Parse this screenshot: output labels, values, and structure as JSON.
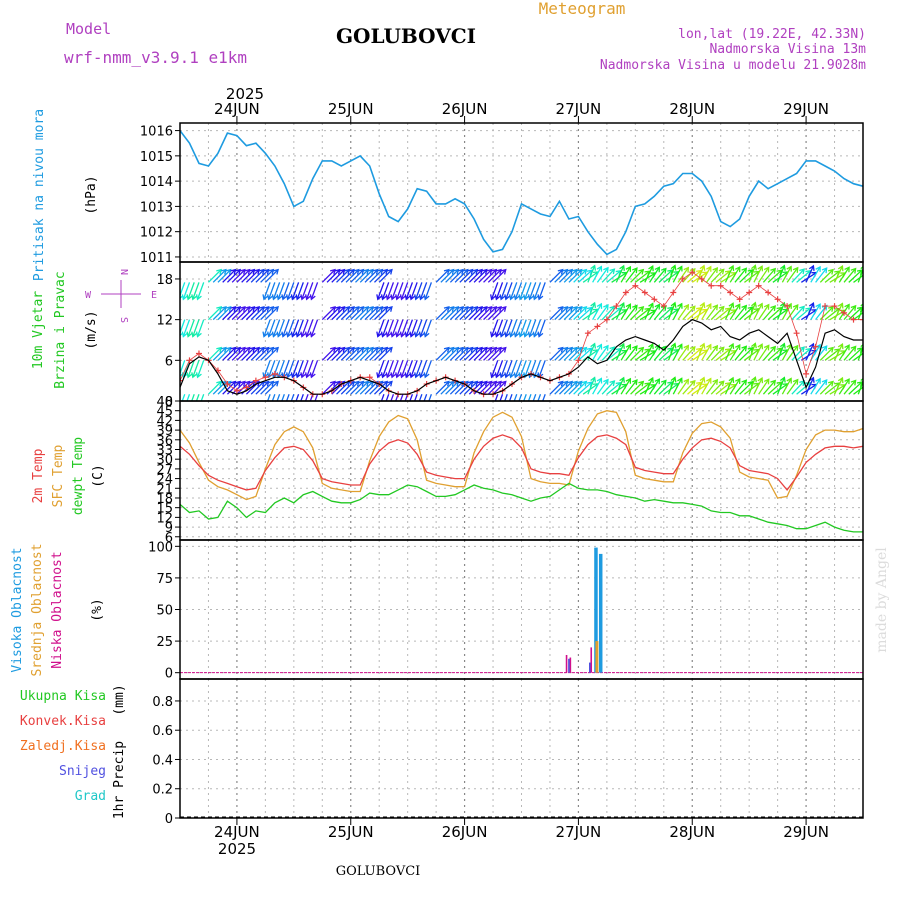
{
  "header": {
    "model_label": "Model",
    "model_name": "wrf-nmm_v3.9.1 e1km",
    "station": "GOLUBOVCI",
    "product": "Meteogram",
    "lonlat": "lon,lat (19.22E, 42.33N)",
    "altitude": "Nadmorska Visina 13m",
    "model_altitude": "Nadmorska Visina u modelu 21.9028m",
    "footer_station": "GOLUBOVCI",
    "credit": "made by Angel"
  },
  "colors": {
    "pressure": "#1e9be0",
    "temp2m": "#e84040",
    "sfc_temp": "#e0a030",
    "dewpoint": "#22c822",
    "high_cloud": "#1e9be0",
    "mid_cloud": "#e0a030",
    "low_cloud": "#d0108c",
    "total_precip": "#22c822",
    "conv_precip": "#e84040",
    "frz_precip": "#f07020",
    "snow": "#5050e0",
    "hail": "#20c8c8",
    "wind_label": "#22c822",
    "compass": "#b040c0",
    "wind_speed_line": "#000000",
    "gust": "#e84040"
  },
  "chart_data": [
    {
      "type": "line",
      "panel": "pressure",
      "ylabel_main": "Pritisak na nivou mora",
      "ylabel_unit": "(hPa)",
      "yticks": [
        "1011",
        "1012",
        "1013",
        "1014",
        "1015",
        "1016"
      ],
      "ylim": [
        1010.8,
        1016.3
      ],
      "x": [
        0,
        2,
        4,
        6,
        8,
        10,
        12,
        14,
        16,
        18,
        20,
        22,
        24,
        26,
        28,
        30,
        32,
        34,
        36,
        38,
        40,
        42,
        44,
        46,
        48,
        50,
        52,
        54,
        56,
        58,
        60,
        62,
        64,
        66,
        68,
        70,
        72,
        74,
        76,
        78,
        80,
        82,
        84,
        86,
        88,
        90,
        92,
        94,
        96,
        98,
        100,
        102,
        104,
        106,
        108,
        110,
        112,
        114,
        116,
        118,
        120,
        122,
        124,
        126,
        128,
        130,
        132,
        134,
        136,
        138,
        140,
        142,
        144
      ],
      "series": [
        {
          "values": [
            1016.0,
            1015.5,
            1014.7,
            1014.6,
            1015.1,
            1015.9,
            1015.8,
            1015.4,
            1015.5,
            1015.1,
            1014.6,
            1013.9,
            1013.0,
            1013.2,
            1014.1,
            1014.8,
            1014.8,
            1014.6,
            1014.8,
            1015.0,
            1014.6,
            1013.5,
            1012.6,
            1012.4,
            1012.9,
            1013.7,
            1013.6,
            1013.1,
            1013.1,
            1013.3,
            1013.1,
            1012.5,
            1011.7,
            1011.2,
            1011.3,
            1012.0,
            1013.1,
            1012.9,
            1012.7,
            1012.6,
            1013.2,
            1012.5,
            1012.6,
            1012.0,
            1011.5,
            1011.1,
            1011.3,
            1012.0,
            1013.0,
            1013.1,
            1013.4,
            1013.8,
            1013.9,
            1014.3,
            1014.3,
            1014.0,
            1013.4,
            1012.4,
            1012.2,
            1012.5,
            1013.4,
            1014.0,
            1013.7,
            1013.9,
            1014.1,
            1014.3,
            1014.8,
            1014.8,
            1014.6,
            1014.4,
            1014.1,
            1013.9,
            1013.8
          ]
        }
      ]
    },
    {
      "type": "line",
      "panel": "wind",
      "ylabel_main": "10m Vjetar",
      "ylabel_sub": "Brzina i Pravac",
      "ylabel_unit": "(m/s)",
      "compass": [
        "N",
        "E",
        "S",
        "W"
      ],
      "yticks": [
        "0",
        "6",
        "12",
        "18"
      ],
      "ylim": [
        0,
        20.5
      ],
      "series": [
        {
          "name": "speed",
          "x": [
            0,
            2,
            4,
            6,
            8,
            10,
            12,
            14,
            16,
            18,
            20,
            22,
            24,
            26,
            28,
            30,
            32,
            34,
            36,
            38,
            40,
            42,
            44,
            46,
            48,
            50,
            52,
            54,
            56,
            58,
            60,
            62,
            64,
            66,
            68,
            70,
            72,
            74,
            76,
            78,
            80,
            82,
            84,
            86,
            88,
            90,
            92,
            94,
            96,
            98,
            100,
            102,
            104,
            106,
            108,
            110,
            112,
            114,
            116,
            118,
            120,
            122,
            124,
            126,
            128,
            130,
            132,
            134,
            136,
            138,
            140,
            142,
            144
          ],
          "values": [
            2.0,
            5.5,
            6.5,
            6.0,
            4.0,
            1.5,
            1.0,
            1.5,
            2.5,
            3.0,
            3.5,
            3.5,
            3.0,
            2.0,
            1.0,
            1.0,
            1.5,
            2.5,
            3.0,
            3.5,
            3.0,
            2.5,
            1.5,
            1.0,
            1.0,
            1.5,
            2.5,
            3.0,
            3.5,
            3.0,
            2.5,
            1.5,
            1.0,
            1.0,
            1.5,
            2.5,
            3.5,
            4.0,
            3.5,
            3.0,
            3.5,
            4.0,
            5.0,
            6.5,
            5.5,
            6.0,
            8.0,
            9.0,
            9.5,
            9.0,
            8.5,
            7.5,
            9.0,
            11.0,
            12.0,
            11.5,
            10.5,
            11.0,
            9.5,
            9.0,
            10.0,
            10.5,
            9.5,
            8.5,
            10.0,
            6.0,
            2.0,
            5.0,
            10.0,
            10.5,
            9.5,
            9.0,
            9.0
          ]
        },
        {
          "name": "gust",
          "x": [
            0,
            2,
            4,
            6,
            8,
            10,
            12,
            14,
            16,
            18,
            20,
            22,
            24,
            26,
            28,
            30,
            32,
            34,
            36,
            38,
            40,
            42,
            44,
            46,
            48,
            50,
            52,
            54,
            56,
            58,
            60,
            62,
            64,
            66,
            68,
            70,
            72,
            74,
            76,
            78,
            80,
            82,
            84,
            86,
            88,
            90,
            92,
            94,
            96,
            98,
            100,
            102,
            104,
            106,
            108,
            110,
            112,
            114,
            116,
            118,
            120,
            122,
            124,
            126,
            128,
            130,
            132,
            134,
            136,
            138,
            140,
            142,
            144
          ],
          "values": [
            3.0,
            6.0,
            7.0,
            6.0,
            4.5,
            2.5,
            1.5,
            2.0,
            3.0,
            3.5,
            4.0,
            3.5,
            3.0,
            2.0,
            1.0,
            1.0,
            1.5,
            2.5,
            3.0,
            3.5,
            3.5,
            2.5,
            1.5,
            1.0,
            1.0,
            1.5,
            2.5,
            3.0,
            3.5,
            3.0,
            2.5,
            1.5,
            1.0,
            1.0,
            1.5,
            2.5,
            3.5,
            4.0,
            3.5,
            3.0,
            3.5,
            4.0,
            6.0,
            10.0,
            11.0,
            12.0,
            14.0,
            16.0,
            17.0,
            16.0,
            15.0,
            14.0,
            16.0,
            18.0,
            19.0,
            18.0,
            17.0,
            17.0,
            16.0,
            15.0,
            16.0,
            17.0,
            16.0,
            15.0,
            14.0,
            10.0,
            4.0,
            8.0,
            14.0,
            14.0,
            13.0,
            12.0,
            12.0
          ]
        }
      ],
      "barb_levels": [
        1,
        6,
        12,
        17.5
      ]
    },
    {
      "type": "line",
      "panel": "temperature",
      "ylabel_lines": [
        "2m Temp",
        "SFC Temp",
        "dewpt Temp"
      ],
      "ylabel_unit": "(C)",
      "yticks": [
        "6",
        "9",
        "12",
        "15",
        "18",
        "21",
        "24",
        "27",
        "30",
        "33",
        "36",
        "39",
        "42",
        "45",
        "48"
      ],
      "ylim": [
        5,
        48
      ],
      "x": [
        0,
        2,
        4,
        6,
        8,
        10,
        12,
        14,
        16,
        18,
        20,
        22,
        24,
        26,
        28,
        30,
        32,
        34,
        36,
        38,
        40,
        42,
        44,
        46,
        48,
        50,
        52,
        54,
        56,
        58,
        60,
        62,
        64,
        66,
        68,
        70,
        72,
        74,
        76,
        78,
        80,
        82,
        84,
        86,
        88,
        90,
        92,
        94,
        96,
        98,
        100,
        102,
        104,
        106,
        108,
        110,
        112,
        114,
        116,
        118,
        120,
        122,
        124,
        126,
        128,
        130,
        132,
        134,
        136,
        138,
        140,
        142,
        144
      ],
      "series": [
        {
          "name": "2m Temp",
          "values": [
            34.0,
            31.5,
            28.0,
            25.0,
            23.5,
            22.5,
            21.5,
            20.5,
            21.0,
            26.5,
            30.5,
            33.5,
            34.0,
            33.0,
            29.5,
            24.0,
            23.0,
            22.5,
            22.0,
            22.0,
            28.5,
            32.5,
            35.0,
            36.0,
            35.0,
            31.5,
            26.0,
            25.0,
            24.5,
            24.0,
            24.0,
            30.0,
            34.0,
            36.5,
            37.5,
            36.5,
            33.5,
            27.0,
            26.0,
            25.5,
            25.5,
            25.0,
            30.5,
            34.5,
            37.0,
            37.5,
            36.5,
            34.5,
            27.5,
            26.5,
            26.0,
            25.5,
            25.5,
            30.0,
            33.5,
            36.0,
            36.5,
            35.5,
            33.5,
            28.0,
            26.5,
            26.0,
            25.5,
            24.0,
            20.5,
            24.5,
            29.0,
            31.5,
            33.5,
            34.0,
            34.0,
            33.5,
            34.0
          ]
        },
        {
          "name": "SFC Temp",
          "values": [
            39.0,
            35.0,
            29.0,
            23.5,
            21.5,
            20.5,
            19.0,
            17.5,
            18.5,
            27.0,
            34.5,
            38.5,
            40.0,
            38.5,
            33.5,
            22.5,
            21.0,
            20.5,
            20.0,
            20.0,
            29.5,
            37.0,
            41.5,
            43.5,
            42.5,
            36.0,
            23.5,
            22.5,
            22.0,
            21.5,
            21.5,
            32.0,
            38.5,
            43.0,
            44.5,
            43.0,
            37.0,
            24.0,
            23.0,
            22.5,
            22.5,
            22.0,
            32.5,
            39.5,
            44.0,
            45.0,
            44.5,
            38.5,
            25.0,
            24.0,
            23.5,
            23.0,
            23.0,
            32.0,
            38.0,
            41.0,
            41.5,
            40.0,
            36.5,
            26.0,
            24.5,
            24.0,
            23.5,
            18.0,
            18.5,
            25.0,
            33.0,
            37.5,
            39.0,
            39.0,
            38.5,
            38.5,
            39.5
          ]
        },
        {
          "name": "dewpt Temp",
          "values": [
            16.0,
            13.5,
            14.0,
            11.5,
            12.0,
            17.0,
            15.0,
            12.0,
            14.0,
            13.5,
            16.5,
            18.0,
            16.5,
            19.0,
            20.0,
            18.5,
            17.0,
            16.5,
            16.5,
            17.5,
            19.5,
            19.0,
            19.0,
            20.5,
            22.0,
            21.5,
            20.0,
            18.5,
            18.5,
            19.0,
            20.5,
            22.0,
            21.0,
            20.5,
            19.5,
            19.0,
            18.0,
            17.0,
            18.0,
            18.5,
            20.5,
            22.5,
            21.0,
            20.5,
            20.5,
            20.0,
            19.0,
            18.5,
            18.0,
            17.0,
            17.5,
            17.0,
            16.5,
            16.5,
            16.0,
            15.5,
            14.0,
            13.5,
            13.5,
            12.5,
            12.5,
            11.5,
            10.5,
            10.0,
            9.5,
            8.5,
            8.5,
            9.5,
            10.5,
            9.0,
            8.0,
            7.5,
            7.5
          ]
        }
      ]
    },
    {
      "type": "bar",
      "panel": "cloud",
      "ylabel_lines": [
        "Visoka Oblacnost",
        "Srednja Oblacnost",
        "Niska Oblacnost"
      ],
      "ylabel_unit": "(%)",
      "yticks": [
        "0",
        "25",
        "50",
        "75",
        "100"
      ],
      "ylim": [
        -5,
        105
      ],
      "series": [
        {
          "name": "Visoka Oblacnost",
          "x": [
            87.7,
            88.7
          ],
          "values": [
            99,
            94
          ]
        },
        {
          "name": "Srednja Oblacnost",
          "x": [
            87.9
          ],
          "values": [
            25
          ]
        },
        {
          "name": "Niska Oblacnost",
          "x": [
            81.5,
            82.3,
            86.7
          ],
          "values": [
            14,
            12,
            20
          ]
        },
        {
          "name": "Visoka Oblacnost",
          "x": [
            82.0,
            86.4
          ],
          "values": [
            11,
            8
          ]
        }
      ]
    },
    {
      "type": "bar",
      "panel": "precipitation",
      "ylabel_main": "1hr Precip",
      "ylabel_unit": "(mm)",
      "legend": [
        "Ukupna Kisa",
        "Konvek.Kisa",
        "Zaledj.Kisa",
        "Snijeg",
        "Grad"
      ],
      "yticks": [
        "0",
        "0.2",
        "0.4",
        "0.6",
        "0.8"
      ],
      "ylim": [
        0,
        0.95
      ],
      "series": []
    }
  ],
  "x_axis": {
    "year_top": "2025",
    "year_bottom": "2025",
    "dates": [
      "24JUN",
      "25JUN",
      "26JUN",
      "27JUN",
      "28JUN",
      "29JUN"
    ],
    "date_hours": [
      12,
      36,
      60,
      84,
      108,
      132
    ],
    "span_hours": 144
  }
}
